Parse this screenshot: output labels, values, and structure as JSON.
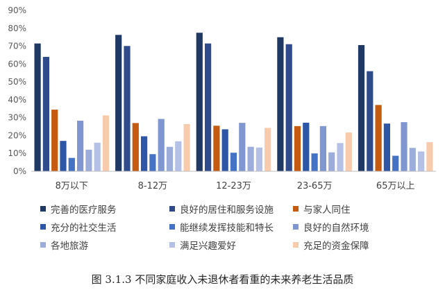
{
  "chart_data": {
    "type": "bar",
    "categories": [
      "8万以下",
      "8-12万",
      "12-23万",
      "23-65万",
      "65万以上"
    ],
    "series": [
      {
        "name": "完善的医疗服务",
        "color": "#203864",
        "values": [
          71.5,
          76.3,
          77.5,
          75.0,
          70.6
        ]
      },
      {
        "name": "良好的居住和服务设施",
        "color": "#2F4B8C",
        "values": [
          64.0,
          70.1,
          71.5,
          71.1,
          56.0
        ]
      },
      {
        "name": "与家人同住",
        "color": "#C55A11",
        "values": [
          34.5,
          27.0,
          25.5,
          25.3,
          37.1
        ]
      },
      {
        "name": "充分的社交生活",
        "color": "#2E56A7",
        "values": [
          17.0,
          19.6,
          23.5,
          27.2,
          26.7
        ]
      },
      {
        "name": "能继续发挥技能和特长",
        "color": "#4472C4",
        "values": [
          7.5,
          9.6,
          10.4,
          10.0,
          8.7
        ]
      },
      {
        "name": "良好的自然环境",
        "color": "#7F96D1",
        "values": [
          28.3,
          29.3,
          27.1,
          25.3,
          27.5
        ]
      },
      {
        "name": "各地旅游",
        "color": "#9CADDC",
        "values": [
          12.1,
          13.7,
          13.7,
          10.6,
          13.1
        ]
      },
      {
        "name": "满足兴趣爱好",
        "color": "#B4C0E6",
        "values": [
          16.0,
          16.8,
          13.3,
          15.8,
          11.1
        ]
      },
      {
        "name": "充足的资金保障",
        "color": "#F8CBAD",
        "values": [
          31.3,
          26.4,
          24.3,
          21.7,
          16.3
        ]
      }
    ],
    "y_ticks": [
      "0%",
      "10%",
      "20%",
      "30%",
      "40%",
      "50%",
      "60%",
      "70%",
      "80%",
      "90%"
    ],
    "ylim": [
      0,
      90
    ],
    "grid": false,
    "legend_position": "bottom",
    "caption": "图 3.1.3  不同家庭收入未退休者看重的未来养老生活品质"
  }
}
